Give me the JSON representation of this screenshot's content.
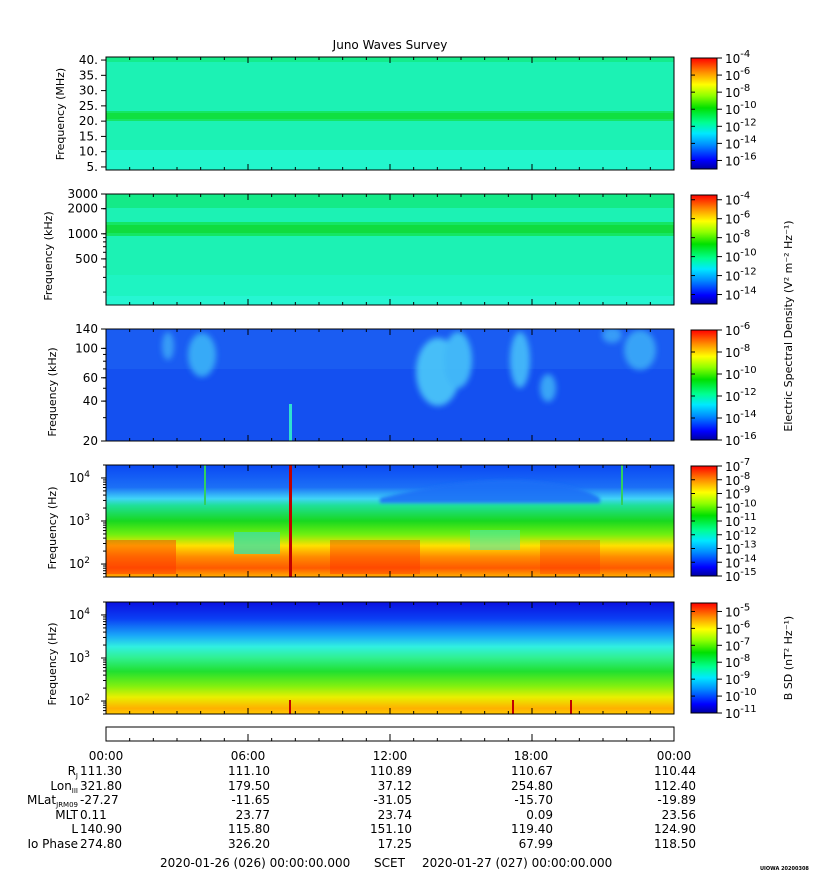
{
  "chart_data": {
    "type": "heatmap",
    "title": "Juno Waves Survey",
    "x_axis": {
      "tick_labels": [
        "00:00",
        "06:00",
        "12:00",
        "18:00",
        "00:00"
      ],
      "range_hours": [
        0,
        24
      ]
    },
    "panels": [
      {
        "id": "hf-mhz",
        "ylabel": "Frequency (MHz)",
        "yscale": "linear",
        "ylim": [
          4,
          41
        ],
        "yticks": [
          {
            "v": 5,
            "label": "5."
          },
          {
            "v": 10,
            "label": "10."
          },
          {
            "v": 15,
            "label": "15."
          },
          {
            "v": 20,
            "label": "20."
          },
          {
            "v": 25,
            "label": "25."
          },
          {
            "v": 30,
            "label": "30."
          },
          {
            "v": 35,
            "label": "35."
          },
          {
            "v": 40,
            "label": "40."
          }
        ],
        "colorbar": {
          "exp_range": [
            -17,
            -4
          ],
          "ticks": [
            -4,
            -6,
            -8,
            -10,
            -12,
            -14,
            -16
          ]
        }
      },
      {
        "id": "hf-khz",
        "ylabel": "Frequency (kHz)",
        "yscale": "log",
        "ylim": [
          140,
          3000
        ],
        "yticks": [
          {
            "v": 500,
            "label": "500"
          },
          {
            "v": 1000,
            "label": "1000"
          },
          {
            "v": 2000,
            "label": "2000"
          },
          {
            "v": 3000,
            "label": "3000"
          }
        ],
        "colorbar": {
          "exp_range": [
            -15,
            -3.5
          ],
          "ticks": [
            -4,
            -6,
            -8,
            -10,
            -12,
            -14
          ]
        }
      },
      {
        "id": "lfr-khz",
        "ylabel": "Frequency (kHz)",
        "yscale": "log",
        "ylim": [
          20,
          140
        ],
        "yticks": [
          {
            "v": 20,
            "label": "20"
          },
          {
            "v": 40,
            "label": "40"
          },
          {
            "v": 60,
            "label": "60"
          },
          {
            "v": 100,
            "label": "100"
          },
          {
            "v": 140,
            "label": "140"
          }
        ],
        "colorbar": {
          "exp_range": [
            -16,
            -6
          ],
          "ticks": [
            -6,
            -8,
            -10,
            -12,
            -14,
            -16
          ]
        }
      },
      {
        "id": "lfr-hz-e",
        "ylabel": "Frequency (Hz)",
        "yscale": "log",
        "ylim": [
          50,
          20000
        ],
        "yticks": [
          {
            "v": 100,
            "label": "10",
            "exp": "2"
          },
          {
            "v": 1000,
            "label": "10",
            "exp": "3"
          },
          {
            "v": 10000,
            "label": "10",
            "exp": "4"
          }
        ],
        "colorbar": {
          "exp_range": [
            -15,
            -7
          ],
          "ticks": [
            -7,
            -8,
            -9,
            -10,
            -11,
            -12,
            -13,
            -14,
            -15
          ]
        }
      },
      {
        "id": "lfr-hz-b",
        "ylabel": "Frequency (Hz)",
        "yscale": "log",
        "ylim": [
          50,
          20000
        ],
        "yticks": [
          {
            "v": 100,
            "label": "10",
            "exp": "2"
          },
          {
            "v": 1000,
            "label": "10",
            "exp": "3"
          },
          {
            "v": 10000,
            "label": "10",
            "exp": "4"
          }
        ],
        "colorbar": {
          "exp_range": [
            -11,
            -4.5
          ],
          "ticks": [
            -5,
            -6,
            -7,
            -8,
            -9,
            -10,
            -11
          ]
        }
      }
    ],
    "colorbar_labels": {
      "electric": "Electric Spectral Density (V² m⁻² Hz⁻¹)",
      "magnetic": "B SD (nT² Hz⁻¹)"
    },
    "ephemeris": {
      "rows": [
        {
          "label": "RJ",
          "values": [
            "111.30",
            "111.10",
            "110.89",
            "110.67",
            "110.44"
          ]
        },
        {
          "label": "LonIII",
          "values": [
            "321.80",
            "179.50",
            "37.12",
            "254.80",
            "112.40"
          ]
        },
        {
          "label": "MLatJRM09",
          "values": [
            "-27.27",
            "-11.65",
            "-31.05",
            "-15.70",
            "-19.89"
          ]
        },
        {
          "label": "MLT",
          "values": [
            "0.11",
            "23.77",
            "23.74",
            "0.09",
            "23.56"
          ]
        },
        {
          "label": "L",
          "values": [
            "140.90",
            "115.80",
            "151.10",
            "119.40",
            "124.90"
          ]
        },
        {
          "label": "Io Phase",
          "values": [
            "274.80",
            "326.20",
            "17.25",
            "67.99",
            "118.50"
          ]
        }
      ]
    }
  },
  "footer": {
    "start": "2020-01-26 (026) 00:00:00.000",
    "mid": "SCET",
    "end": "2020-01-27 (027) 00:00:00.000",
    "stamp": "UIOWA 20200308"
  }
}
